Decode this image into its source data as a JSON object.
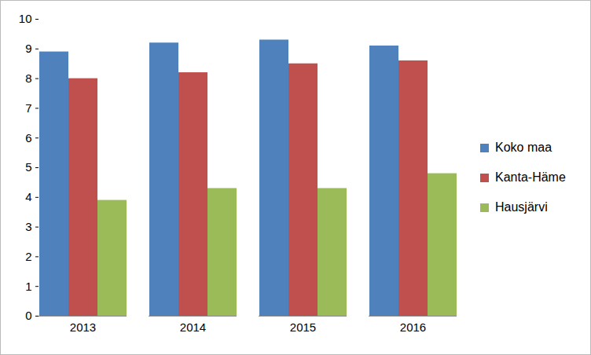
{
  "chart_data": {
    "type": "bar",
    "categories": [
      "2013",
      "2014",
      "2015",
      "2016"
    ],
    "series": [
      {
        "name": "Koko maa",
        "color": "#4f81bd",
        "values": [
          8.9,
          9.2,
          9.3,
          9.1
        ]
      },
      {
        "name": "Kanta-Häme",
        "color": "#c0504d",
        "values": [
          8.0,
          8.2,
          8.5,
          8.6
        ]
      },
      {
        "name": "Hausjärvi",
        "color": "#9bbb59",
        "values": [
          3.9,
          4.3,
          4.3,
          4.8
        ]
      }
    ],
    "ylim": [
      0,
      10
    ],
    "yticks": [
      0,
      1,
      2,
      3,
      4,
      5,
      6,
      7,
      8,
      9,
      10
    ],
    "grid": false,
    "legend": "right"
  }
}
